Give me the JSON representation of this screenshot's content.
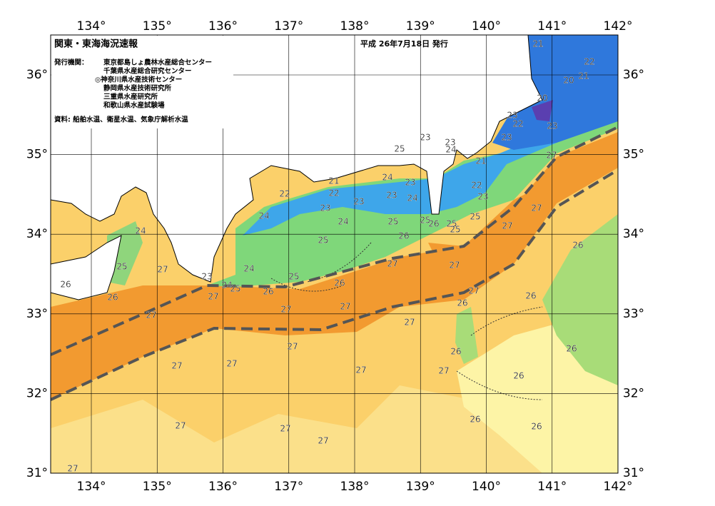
{
  "header": {
    "title": "関東・東海海況速報",
    "date": "平成 26年7月18日 発行",
    "issuer_label": "発行機関：",
    "issuers": [
      "東京都島しょ農林水産総合センター",
      "千葉県水産総合研究センター",
      "◎神奈川県水産技術センター",
      "静岡県水産技術研究所",
      "三重県水産研究所",
      "和歌山県水産試験場"
    ],
    "sources": "資料: 船舶水温、衛星水温、気象庁解析水温"
  },
  "map": {
    "lon_ticks": [
      {
        "value": 134,
        "label": "134°"
      },
      {
        "value": 135,
        "label": "135°"
      },
      {
        "value": 136,
        "label": "136°"
      },
      {
        "value": 137,
        "label": "137°"
      },
      {
        "value": 138,
        "label": "138°"
      },
      {
        "value": 139,
        "label": "139°"
      },
      {
        "value": 140,
        "label": "140°"
      },
      {
        "value": 141,
        "label": "141°"
      },
      {
        "value": 142,
        "label": "142°"
      }
    ],
    "lat_ticks": [
      {
        "value": 31,
        "label": "31°"
      },
      {
        "value": 32,
        "label": "32°"
      },
      {
        "value": 33,
        "label": "33°"
      },
      {
        "value": 34,
        "label": "34°"
      },
      {
        "value": 35,
        "label": "35°"
      },
      {
        "value": 36,
        "label": "36°"
      }
    ],
    "contour_labels": [
      21,
      22,
      21,
      20,
      20,
      23,
      22,
      23,
      23,
      23,
      23,
      24,
      25,
      27,
      21,
      24,
      23,
      21,
      22,
      22,
      23,
      23,
      22,
      23,
      24,
      23,
      27,
      25,
      24,
      24,
      25,
      25,
      26,
      25,
      25,
      27,
      24,
      26,
      25,
      26,
      25,
      27,
      27,
      27,
      24,
      25,
      23,
      24,
      25,
      26,
      26,
      26,
      27,
      26,
      27,
      26,
      26,
      27,
      27,
      27,
      27,
      26,
      26,
      27,
      27,
      27,
      27,
      27,
      26,
      26,
      26,
      27,
      27,
      27,
      27
    ]
  }
}
